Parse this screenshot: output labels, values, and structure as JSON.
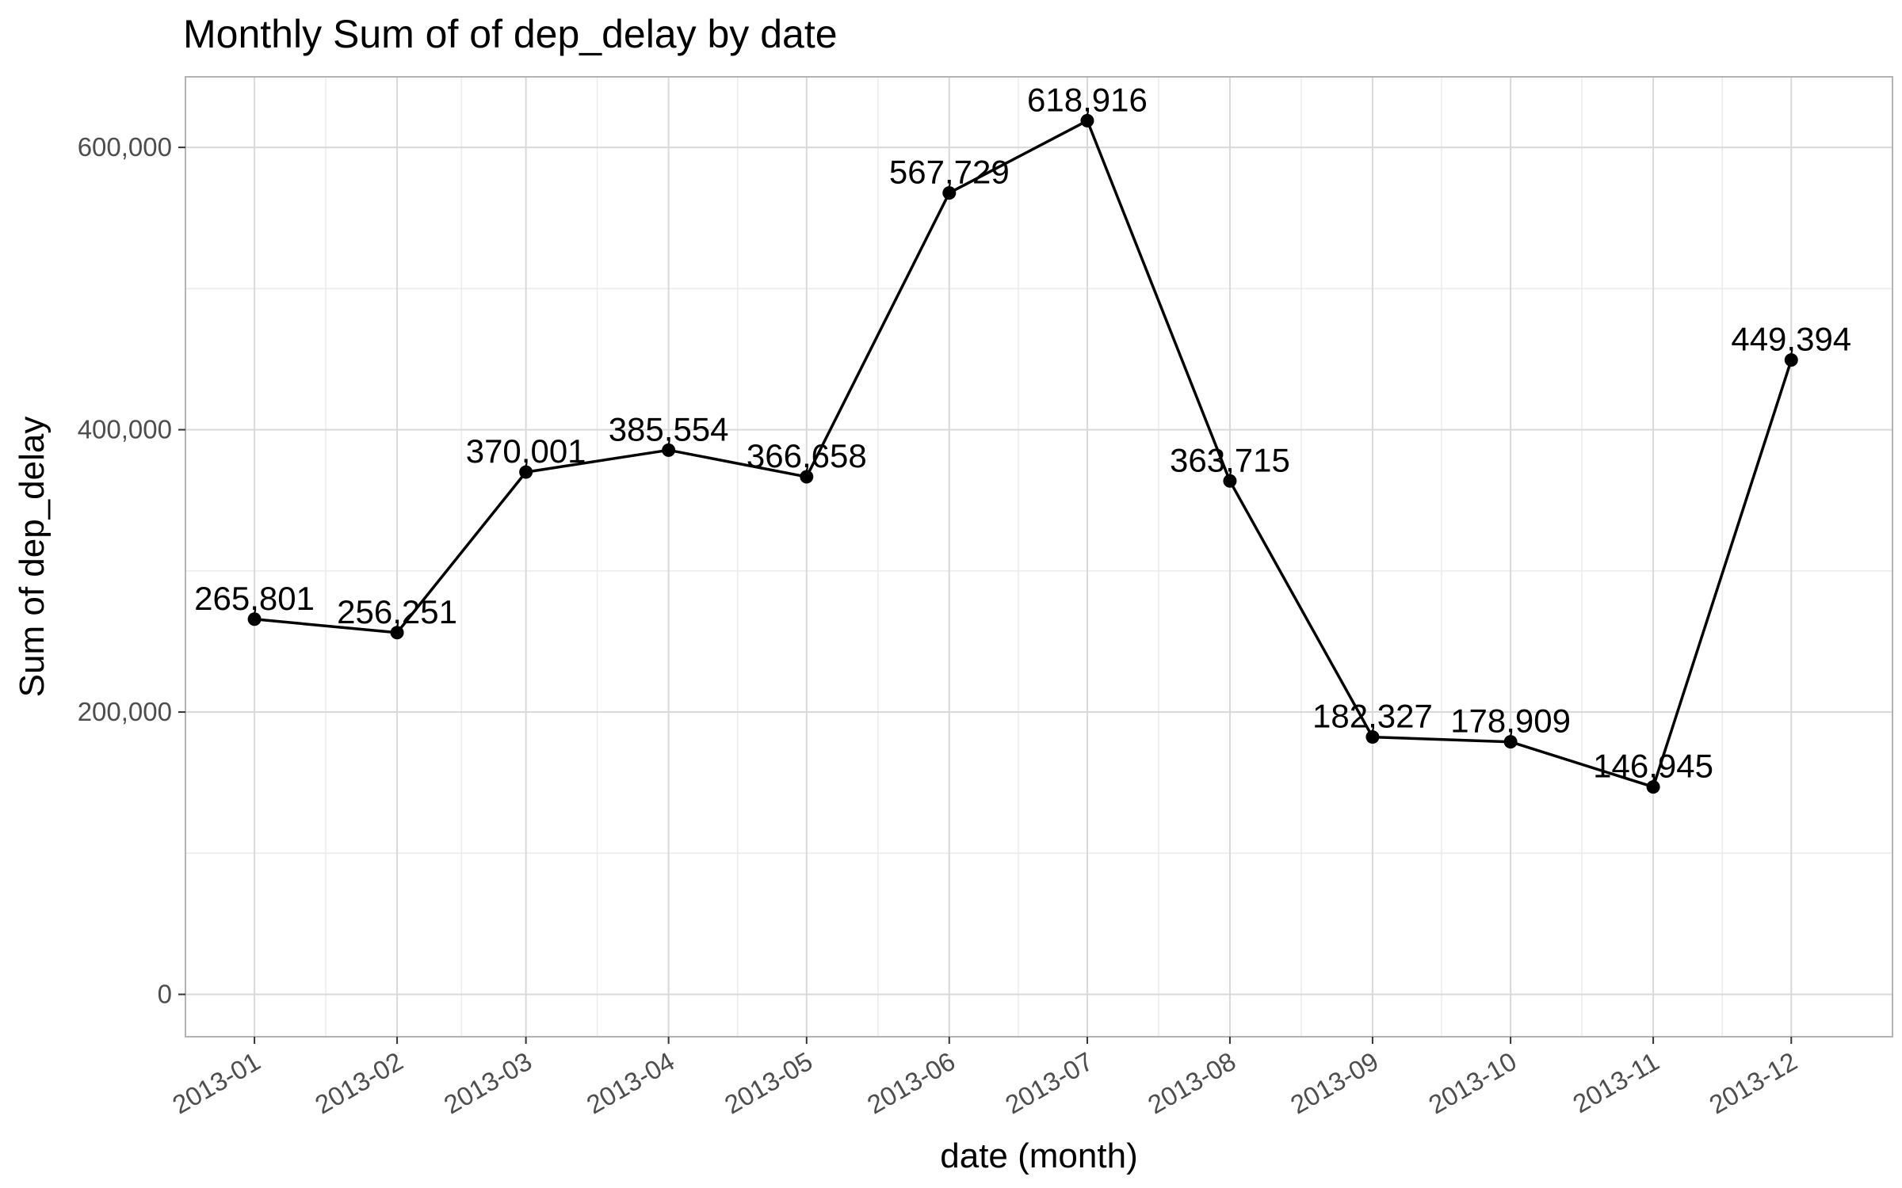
{
  "chart_data": {
    "type": "line",
    "title": "Monthly Sum of of dep_delay by date",
    "xlabel": "date (month)",
    "ylabel": "Sum of dep_delay",
    "x": [
      "2013-01",
      "2013-02",
      "2013-03",
      "2013-04",
      "2013-05",
      "2013-06",
      "2013-07",
      "2013-08",
      "2013-09",
      "2013-10",
      "2013-11",
      "2013-12"
    ],
    "values": [
      265801,
      256251,
      370001,
      385554,
      366658,
      567729,
      618916,
      363715,
      182327,
      178909,
      146945,
      449394
    ],
    "data_labels": [
      "265,801",
      "256,251",
      "370,001",
      "385,554",
      "366,658",
      "567,729",
      "618,916",
      "363,715",
      "182,327",
      "178,909",
      "146,945",
      "449,394"
    ],
    "y_ticks": [
      0,
      200000,
      400000,
      600000
    ],
    "y_tick_labels": [
      "0",
      "200,000",
      "400,000",
      "600,000"
    ],
    "ylim": [
      -30000,
      650000
    ],
    "xlim": [
      "2012-12-17",
      "2013-12-23"
    ],
    "grid": true,
    "legend": "none",
    "colors": {
      "line": "#000000",
      "point": "#000000",
      "panel_border": "#b3b3b3",
      "grid_major": "#d9d9d9",
      "grid_minor": "#ebebeb",
      "tick_text": "#4d4d4d"
    }
  }
}
